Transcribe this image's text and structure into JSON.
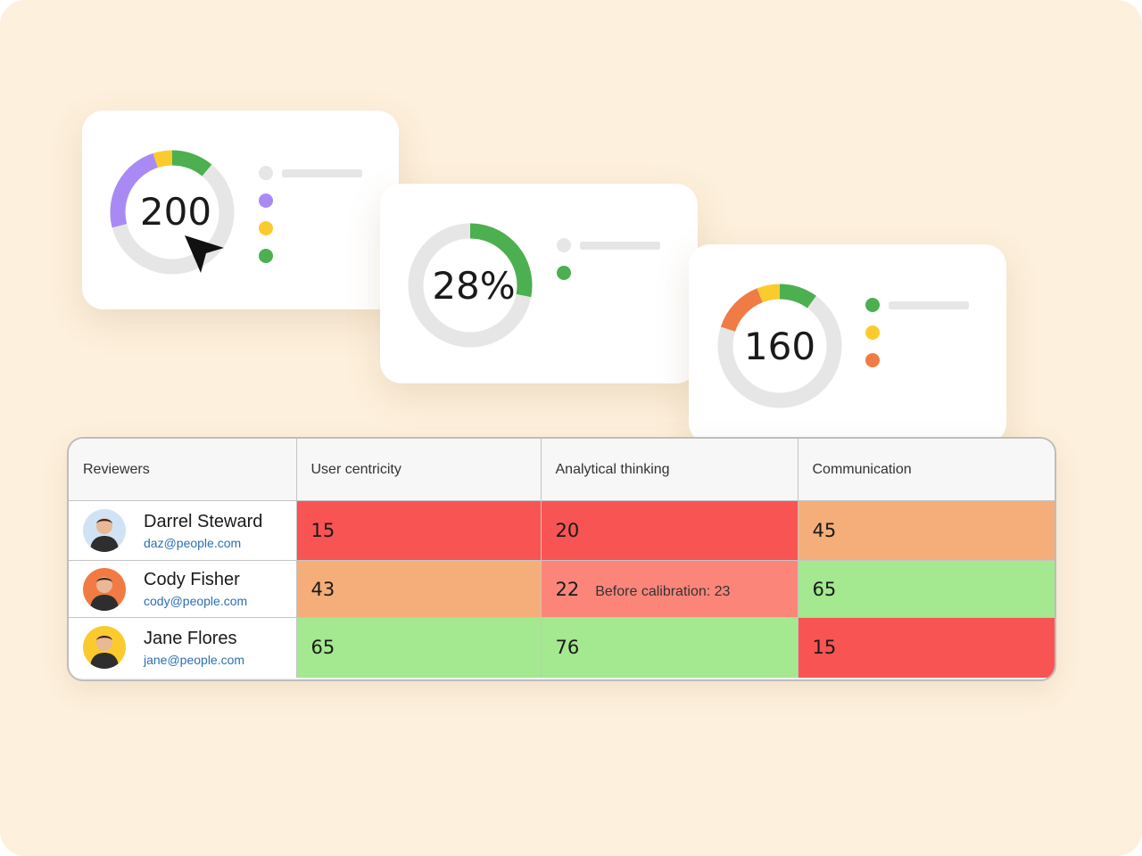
{
  "colors": {
    "background": "#fdf0dc",
    "green": "#4caf50",
    "yellow": "#fbcb2d",
    "purple": "#a98af5",
    "orange": "#f07b45",
    "track": "#e6e6e6",
    "cell_red": "#f75453",
    "cell_light_red": "#fc857a",
    "cell_orange": "#f5ae79",
    "cell_green": "#a4e88f"
  },
  "cards": [
    {
      "value": "200",
      "donut_segments": [
        {
          "color": "purple",
          "fraction": 0.24
        },
        {
          "color": "yellow",
          "fraction": 0.05
        },
        {
          "color": "green",
          "fraction": 0.11
        }
      ],
      "legend_dots": [
        "track",
        "purple",
        "yellow",
        "green"
      ],
      "cursor_icon": "pointer-arrow-icon"
    },
    {
      "value": "28%",
      "donut_segments": [
        {
          "color": "green",
          "fraction": 0.28
        }
      ],
      "legend_dots": [
        "track",
        "green"
      ]
    },
    {
      "value": "160",
      "donut_segments": [
        {
          "color": "orange",
          "fraction": 0.14
        },
        {
          "color": "yellow",
          "fraction": 0.06
        },
        {
          "color": "green",
          "fraction": 0.1
        }
      ],
      "legend_dots": [
        "green",
        "yellow",
        "orange"
      ]
    }
  ],
  "table": {
    "headers": [
      "Reviewers",
      "User centricity",
      "Analytical thinking",
      "Communication"
    ],
    "rows": [
      {
        "name": "Darrel Steward",
        "email": "daz@people.com",
        "avatar_color": "#cfe3f5",
        "scores": [
          {
            "value": "15",
            "color": "cell_red"
          },
          {
            "value": "20",
            "color": "cell_red"
          },
          {
            "value": "45",
            "color": "cell_orange"
          }
        ]
      },
      {
        "name": "Cody Fisher",
        "email": "cody@people.com",
        "avatar_color": "#f07b45",
        "scores": [
          {
            "value": "43",
            "color": "cell_orange"
          },
          {
            "value": "22",
            "color": "cell_light_red",
            "note": "Before calibration: 23"
          },
          {
            "value": "65",
            "color": "cell_green"
          }
        ]
      },
      {
        "name": "Jane Flores",
        "email": "jane@people.com",
        "avatar_color": "#fbcb2d",
        "scores": [
          {
            "value": "65",
            "color": "cell_green"
          },
          {
            "value": "76",
            "color": "cell_green"
          },
          {
            "value": "15",
            "color": "cell_red"
          }
        ]
      }
    ]
  }
}
